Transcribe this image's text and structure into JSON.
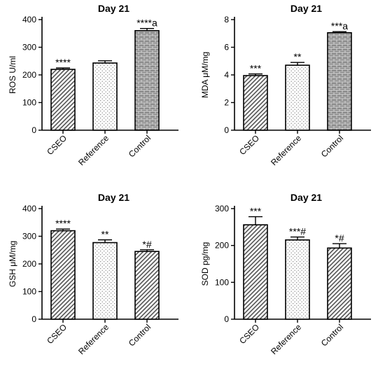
{
  "chart_data": [
    {
      "type": "bar",
      "title": "Day 21",
      "ylabel": "ROS U/ml",
      "categories": [
        "CSEO",
        "Reference",
        "Control"
      ],
      "values": [
        220,
        243,
        360
      ],
      "errors": [
        5,
        8,
        8
      ],
      "annotations": [
        "****",
        "",
        "****a"
      ],
      "ylim": [
        0,
        400
      ],
      "yticks": [
        "0",
        "100",
        "200",
        "300",
        "400"
      ],
      "patterns": [
        "diagonal-stripes",
        "dots",
        "bricks"
      ]
    },
    {
      "type": "bar",
      "title": "Day 21",
      "ylabel": "MDA μM/mg",
      "categories": [
        "CSEO",
        "Reference",
        "Control"
      ],
      "values": [
        3.95,
        4.7,
        7.05
      ],
      "errors": [
        0.12,
        0.2,
        0.08
      ],
      "annotations": [
        "***",
        "**",
        "***a"
      ],
      "ylim": [
        0,
        8
      ],
      "yticks": [
        "0",
        "2",
        "4",
        "6",
        "8"
      ],
      "patterns": [
        "diagonal-stripes",
        "dots",
        "bricks"
      ]
    },
    {
      "type": "bar",
      "title": "Day 21",
      "ylabel": "GSH μM/mg",
      "categories": [
        "CSEO",
        "Reference",
        "Control"
      ],
      "values": [
        320,
        277,
        245
      ],
      "errors": [
        6,
        10,
        6
      ],
      "annotations": [
        "****",
        "**",
        "*#"
      ],
      "ylim": [
        0,
        400
      ],
      "yticks": [
        "0",
        "100",
        "200",
        "300",
        "400"
      ],
      "patterns": [
        "diagonal-stripes",
        "dots",
        "diagonal-stripes"
      ]
    },
    {
      "type": "bar",
      "title": "Day 21",
      "ylabel": "SOD pg/mg",
      "categories": [
        "CSEO",
        "Reference",
        "Control"
      ],
      "values": [
        256,
        215,
        193
      ],
      "errors": [
        22,
        8,
        12
      ],
      "annotations": [
        "***",
        "***#",
        "*#"
      ],
      "ylim": [
        0,
        300
      ],
      "yticks": [
        "0",
        "100",
        "200",
        "300"
      ],
      "patterns": [
        "diagonal-stripes",
        "dots",
        "diagonal-stripes"
      ]
    }
  ]
}
